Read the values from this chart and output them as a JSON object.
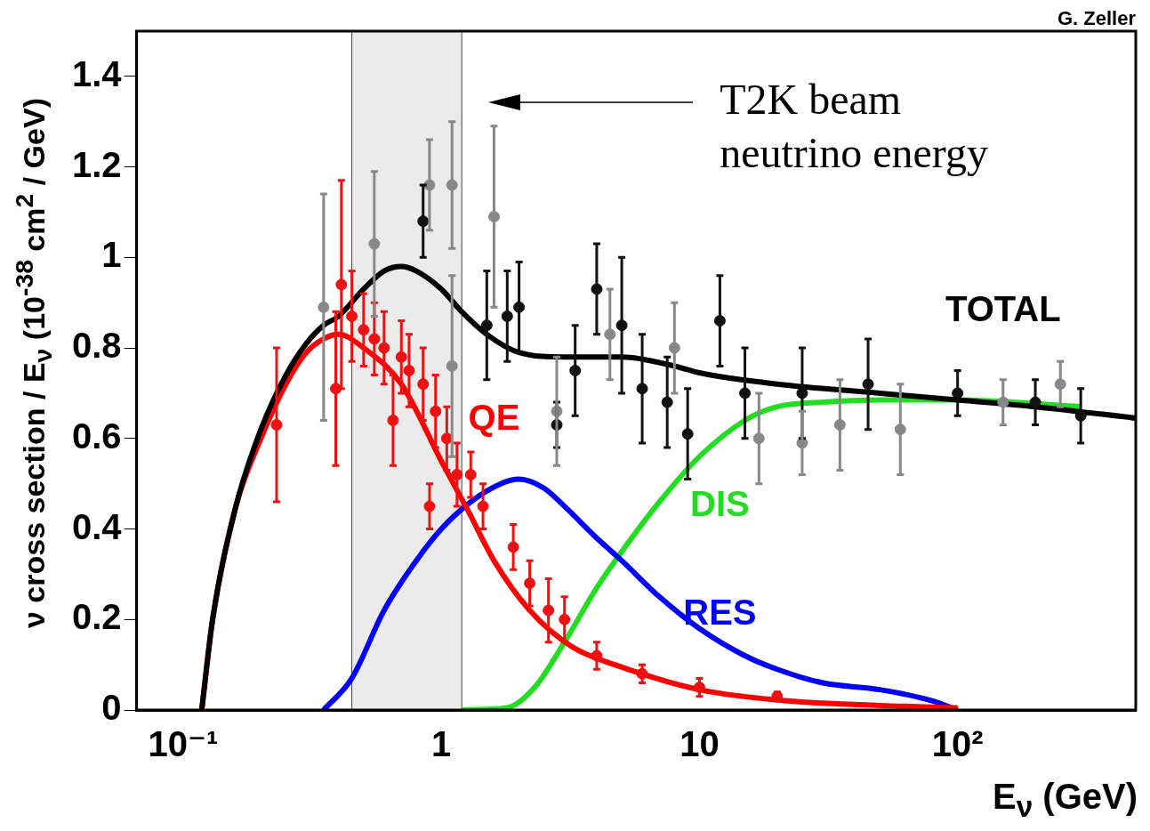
{
  "chart_data": {
    "type": "line",
    "xlabel": "E$_{ν}$ (GeV)",
    "ylabel": "ν cross section / E$_{ν}$ (10$^{-38}$ cm$^{2}$ / GeV)",
    "log": "x",
    "xlim": [
      0.066,
      490
    ],
    "xticks": [
      {
        "value": 0.1,
        "label": "10⁻¹"
      },
      1,
      10,
      {
        "value": 100,
        "label": "10²"
      }
    ],
    "ylim": [
      0,
      1.5
    ],
    "yticks": [
      0,
      0.2,
      0.4,
      0.6,
      0.8,
      1,
      1.2,
      1.4
    ],
    "grid": false,
    "legend": false,
    "bands": [
      {
        "axis": "x",
        "from": 0.45,
        "to": 1.2,
        "color": "#ebebeb"
      }
    ],
    "annotations": [
      "T2K beam neutrino energy",
      "G. Zeller"
    ],
    "series": [
      {
        "name": "TOTAL",
        "type": "line",
        "color": "#000000",
        "x": [
          0.118,
          0.13,
          0.16,
          0.2,
          0.25,
          0.3,
          0.35,
          0.4,
          0.5,
          0.6,
          0.7,
          0.8,
          1,
          1.2,
          1.5,
          2,
          3,
          5,
          8,
          10,
          20,
          50,
          100,
          200,
          490
        ],
        "values": [
          0,
          0.2,
          0.45,
          0.62,
          0.74,
          0.81,
          0.85,
          0.87,
          0.93,
          0.97,
          0.98,
          0.97,
          0.93,
          0.88,
          0.83,
          0.79,
          0.78,
          0.78,
          0.76,
          0.745,
          0.72,
          0.7,
          0.685,
          0.67,
          0.645
        ]
      },
      {
        "name": "QE",
        "type": "line",
        "color": "#ff0000",
        "x": [
          0.118,
          0.13,
          0.16,
          0.2,
          0.25,
          0.3,
          0.35,
          0.4,
          0.5,
          0.7,
          1,
          1.27,
          1.6,
          2.2,
          3.2,
          4.7,
          10,
          22,
          50,
          100
        ],
        "values": [
          0,
          0.2,
          0.45,
          0.6,
          0.72,
          0.79,
          0.82,
          0.83,
          0.8,
          0.72,
          0.55,
          0.44,
          0.33,
          0.22,
          0.14,
          0.1,
          0.045,
          0.02,
          0.01,
          0.005
        ]
      },
      {
        "name": "RES",
        "type": "line",
        "color": "#0000ff",
        "x": [
          0.35,
          0.45,
          0.6,
          0.8,
          1,
          1.3,
          1.7,
          2,
          2.5,
          3,
          4,
          5,
          7,
          10,
          15,
          20,
          30,
          50,
          80,
          100
        ],
        "values": [
          0,
          0.07,
          0.22,
          0.33,
          0.4,
          0.46,
          0.5,
          0.51,
          0.49,
          0.45,
          0.38,
          0.33,
          0.25,
          0.18,
          0.12,
          0.09,
          0.06,
          0.045,
          0.02,
          0
        ]
      },
      {
        "name": "DIS",
        "type": "line",
        "color": "#22dd22",
        "x": [
          1.2,
          1.8,
          2.3,
          3,
          4,
          5,
          7,
          10,
          15,
          20,
          30,
          50,
          100,
          300
        ],
        "values": [
          0,
          0.005,
          0.05,
          0.15,
          0.27,
          0.35,
          0.46,
          0.56,
          0.64,
          0.67,
          0.68,
          0.685,
          0.685,
          0.67
        ]
      },
      {
        "type": "scatter",
        "color": "#ee1111",
        "x": [
          0.23,
          0.41,
          0.39,
          0.45,
          0.5,
          0.55,
          0.6,
          0.65,
          0.7,
          0.75,
          0.85,
          0.95,
          1.05,
          1.15,
          0.9,
          1.3,
          1.45,
          1.9,
          2.2,
          2.6,
          3,
          4,
          6,
          10,
          20
        ],
        "values": [
          0.63,
          0.94,
          0.71,
          0.87,
          0.84,
          0.82,
          0.8,
          0.64,
          0.78,
          0.75,
          0.72,
          0.66,
          0.6,
          0.52,
          0.45,
          0.52,
          0.45,
          0.36,
          0.28,
          0.22,
          0.2,
          0.12,
          0.08,
          0.05,
          0.03
        ],
        "errors": [
          0.17,
          0.23,
          0.17,
          0.1,
          0.08,
          0.08,
          0.08,
          0.1,
          0.08,
          0.08,
          0.08,
          0.08,
          0.07,
          0.07,
          0.05,
          0.05,
          0.05,
          0.05,
          0.05,
          0.07,
          0.05,
          0.03,
          0.02,
          0.02,
          0.01
        ]
      },
      {
        "type": "scatter",
        "color": "#111111",
        "x": [
          0.85,
          1.5,
          1.8,
          2,
          2.8,
          3.3,
          4,
          5,
          6,
          7.5,
          9,
          12,
          15,
          25,
          45,
          100,
          200,
          300
        ],
        "values": [
          1.08,
          0.85,
          0.87,
          0.89,
          0.63,
          0.75,
          0.93,
          0.85,
          0.71,
          0.68,
          0.61,
          0.86,
          0.7,
          0.7,
          0.72,
          0.7,
          0.68,
          0.65
        ],
        "errors": [
          0.08,
          0.12,
          0.1,
          0.1,
          0.05,
          0.1,
          0.1,
          0.15,
          0.12,
          0.1,
          0.1,
          0.1,
          0.1,
          0.1,
          0.1,
          0.05,
          0.05,
          0.06
        ]
      },
      {
        "type": "scatter",
        "color": "#888888",
        "x": [
          0.35,
          0.55,
          0.9,
          1.1,
          1.1,
          1.6,
          2.8,
          4.5,
          8,
          17,
          25,
          35,
          60,
          150,
          250
        ],
        "values": [
          0.89,
          1.03,
          1.16,
          1.16,
          0.76,
          1.09,
          0.66,
          0.83,
          0.8,
          0.6,
          0.59,
          0.63,
          0.62,
          0.68,
          0.72
        ],
        "errors": [
          0.25,
          0.16,
          0.1,
          0.14,
          0.2,
          0.2,
          0.12,
          0.1,
          0.1,
          0.1,
          0.07,
          0.1,
          0.1,
          0.05,
          0.05
        ]
      }
    ]
  }
}
